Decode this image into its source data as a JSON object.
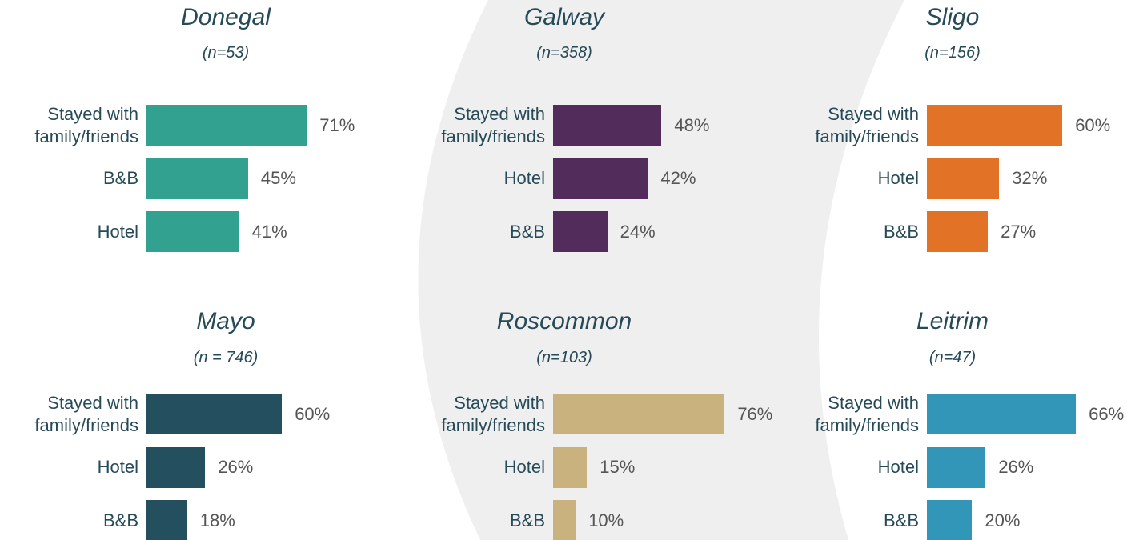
{
  "chart_data": [
    {
      "type": "bar",
      "title": "Donegal",
      "subtitle": "(n=53)",
      "categories": [
        "Stayed with family/friends",
        "B&B",
        "Hotel"
      ],
      "values": [
        71,
        45,
        41
      ],
      "value_labels": [
        "71%",
        "45%",
        "41%"
      ],
      "color": "#33a18f"
    },
    {
      "type": "bar",
      "title": "Galway",
      "subtitle": "(n=358)",
      "categories": [
        "Stayed with family/friends",
        "Hotel",
        "B&B"
      ],
      "values": [
        48,
        42,
        24
      ],
      "value_labels": [
        "48%",
        "42%",
        "24%"
      ],
      "color": "#522d5b"
    },
    {
      "type": "bar",
      "title": "Sligo",
      "subtitle": "(n=156)",
      "categories": [
        "Stayed with family/friends",
        "Hotel",
        "B&B"
      ],
      "values": [
        60,
        32,
        27
      ],
      "value_labels": [
        "60%",
        "32%",
        "27%"
      ],
      "color": "#e27326"
    },
    {
      "type": "bar",
      "title": "Mayo",
      "subtitle": "(n = 746)",
      "categories": [
        "Stayed with family/friends",
        "Hotel",
        "B&B"
      ],
      "values": [
        60,
        26,
        18
      ],
      "value_labels": [
        "60%",
        "26%",
        "18%"
      ],
      "color": "#234f5e"
    },
    {
      "type": "bar",
      "title": "Roscommon",
      "subtitle": "(n=103)",
      "categories": [
        "Stayed with family/friends",
        "Hotel",
        "B&B"
      ],
      "values": [
        76,
        15,
        10
      ],
      "value_labels": [
        "76%",
        "15%",
        "10%"
      ],
      "color": "#c9b27e"
    },
    {
      "type": "bar",
      "title": "Leitrim",
      "subtitle": "(n=47)",
      "categories": [
        "Stayed with family/friends",
        "Hotel",
        "B&B"
      ],
      "values": [
        66,
        26,
        20
      ],
      "value_labels": [
        "66%",
        "26%",
        "20%"
      ],
      "color": "#3196b7"
    }
  ]
}
